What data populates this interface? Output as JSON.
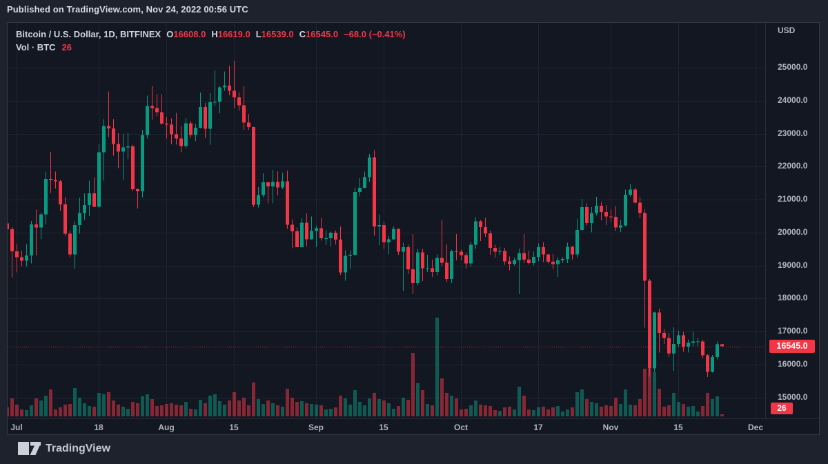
{
  "published_bar": {
    "text": "Published on TradingView.com, Nov 24, 2022 00:56 UTC"
  },
  "header": {
    "symbol_title": "Bitcoin / U.S. Dollar, 1D, BITFINEX",
    "ohlc": {
      "o_label": "O",
      "o": "16608.0",
      "h_label": "H",
      "h": "16619.0",
      "l_label": "L",
      "l": "16539.0",
      "c_label": "C",
      "c": "16545.0",
      "change": "−68.0 (−0.41%)"
    },
    "volume_row": {
      "label": "Vol · BTC",
      "value": "26"
    }
  },
  "price_axis": {
    "title": "USD",
    "tick_labels": [
      "25000.0",
      "24000.0",
      "23000.0",
      "22000.0",
      "21000.0",
      "20000.0",
      "19000.0",
      "18000.0",
      "17000.0",
      "16000.0",
      "15000.0"
    ],
    "tick_prices": [
      25000,
      24000,
      23000,
      22000,
      21000,
      20000,
      19000,
      18000,
      17000,
      16000,
      15000
    ],
    "last_price": 16545.0,
    "last_price_label": "16545.0",
    "volume_value_label": "26"
  },
  "time_axis": {
    "ticks": [
      {
        "label": "Jul",
        "day_index": 2
      },
      {
        "label": "18",
        "day_index": 19
      },
      {
        "label": "Aug",
        "day_index": 33
      },
      {
        "label": "15",
        "day_index": 47
      },
      {
        "label": "Sep",
        "day_index": 64
      },
      {
        "label": "15",
        "day_index": 78
      },
      {
        "label": "Oct",
        "day_index": 94
      },
      {
        "label": "17",
        "day_index": 110
      },
      {
        "label": "Nov",
        "day_index": 125
      },
      {
        "label": "15",
        "day_index": 139
      },
      {
        "label": "Dec",
        "day_index": 155
      }
    ]
  },
  "logo": {
    "text": "TradingView"
  },
  "colors": {
    "background": "#1e222d",
    "chart_background": "#131722",
    "border": "#363a45",
    "grid": "#1e2433",
    "axis_line": "#2a2e39",
    "up": "#089981",
    "down": "#f23645",
    "volume_up": "rgba(8,153,129,0.52)",
    "volume_down": "rgba(242,54,69,0.52)",
    "text_primary": "#d1d4dc",
    "text_secondary": "#b2b5be",
    "badge_bg": "#f23645",
    "last_price_line": "#f23645"
  },
  "chart_data": {
    "type": "candlestick",
    "title": "Bitcoin / U.S. Dollar",
    "exchange": "BITFINEX",
    "interval": "1D",
    "quote_currency": "USD",
    "first_candle_date": "2022-06-29",
    "last_candle_date": "2022-11-24",
    "price_ylim": [
      14400,
      26350
    ],
    "grid": true,
    "legend_position": "top-left",
    "last_close": 16545.0,
    "last_volume": 26,
    "volume_max_scale": 1250,
    "candles_format": [
      "open",
      "high",
      "low",
      "close",
      "volume"
    ],
    "candles": [
      [
        20280,
        20420,
        19980,
        20100,
        110
      ],
      [
        20100,
        20160,
        18630,
        19430,
        230
      ],
      [
        19430,
        19650,
        18790,
        19250,
        150
      ],
      [
        19250,
        19450,
        18980,
        19150,
        90
      ],
      [
        19150,
        19650,
        18970,
        19300,
        80
      ],
      [
        19300,
        20350,
        19060,
        20250,
        140
      ],
      [
        20250,
        20700,
        19300,
        20150,
        230
      ],
      [
        20150,
        20600,
        19800,
        20550,
        200
      ],
      [
        20550,
        21850,
        20250,
        21630,
        260
      ],
      [
        21630,
        22450,
        21200,
        21590,
        340
      ],
      [
        21590,
        21850,
        21330,
        21560,
        90
      ],
      [
        21560,
        21600,
        20650,
        20850,
        110
      ],
      [
        20850,
        21070,
        19900,
        19960,
        150
      ],
      [
        19960,
        20050,
        19250,
        19330,
        160
      ],
      [
        19330,
        20340,
        18910,
        20230,
        360
      ],
      [
        20230,
        21050,
        19960,
        20590,
        240
      ],
      [
        20590,
        21190,
        20380,
        20830,
        170
      ],
      [
        20830,
        21580,
        20500,
        21190,
        130
      ],
      [
        21190,
        21670,
        20770,
        20780,
        120
      ],
      [
        20780,
        22680,
        20760,
        22430,
        300
      ],
      [
        22430,
        23440,
        21580,
        23230,
        280
      ],
      [
        23230,
        24280,
        22900,
        23160,
        310
      ],
      [
        23160,
        23440,
        22330,
        22690,
        200
      ],
      [
        22690,
        23010,
        21950,
        22460,
        150
      ],
      [
        22460,
        22990,
        21600,
        22580,
        120
      ],
      [
        22580,
        23020,
        22230,
        22610,
        100
      ],
      [
        22610,
        22660,
        21250,
        21310,
        180
      ],
      [
        21310,
        21340,
        20730,
        21250,
        170
      ],
      [
        21250,
        23110,
        21060,
        22960,
        250
      ],
      [
        22960,
        24150,
        22850,
        23840,
        280
      ],
      [
        23840,
        24440,
        23420,
        23770,
        220
      ],
      [
        23770,
        24190,
        23520,
        23650,
        130
      ],
      [
        23650,
        24180,
        23270,
        23300,
        140
      ],
      [
        23300,
        23500,
        22850,
        23270,
        160
      ],
      [
        23270,
        23460,
        22680,
        22980,
        170
      ],
      [
        22980,
        23630,
        22660,
        22850,
        150
      ],
      [
        22850,
        23220,
        22430,
        22620,
        140
      ],
      [
        22620,
        23470,
        22570,
        23310,
        180
      ],
      [
        23310,
        23390,
        22870,
        22960,
        100
      ],
      [
        22960,
        23290,
        22770,
        23180,
        90
      ],
      [
        23180,
        24250,
        23160,
        23810,
        210
      ],
      [
        23810,
        23930,
        22860,
        23150,
        170
      ],
      [
        23150,
        24220,
        22670,
        23950,
        260
      ],
      [
        23950,
        24920,
        23850,
        23960,
        280
      ],
      [
        23960,
        24450,
        23620,
        24400,
        190
      ],
      [
        24400,
        24890,
        24300,
        24460,
        150
      ],
      [
        24460,
        25050,
        24160,
        24300,
        200
      ],
      [
        24300,
        25210,
        23780,
        24100,
        310
      ],
      [
        24100,
        24250,
        23690,
        23860,
        200
      ],
      [
        23860,
        24430,
        23120,
        23340,
        240
      ],
      [
        23340,
        23600,
        23110,
        23200,
        140
      ],
      [
        23200,
        23210,
        20770,
        20840,
        430
      ],
      [
        20840,
        21380,
        20760,
        21140,
        220
      ],
      [
        21140,
        21800,
        21070,
        21520,
        160
      ],
      [
        21520,
        21530,
        20890,
        21400,
        200
      ],
      [
        21400,
        21900,
        20890,
        21530,
        170
      ],
      [
        21530,
        21860,
        21130,
        21370,
        140
      ],
      [
        21370,
        21820,
        21310,
        21560,
        120
      ],
      [
        21560,
        21880,
        20110,
        20240,
        350
      ],
      [
        20240,
        20390,
        19520,
        20040,
        240
      ],
      [
        20040,
        20150,
        19550,
        19560,
        180
      ],
      [
        19560,
        20430,
        19540,
        20300,
        190
      ],
      [
        20300,
        20580,
        19580,
        19800,
        170
      ],
      [
        19800,
        20490,
        19790,
        20050,
        160
      ],
      [
        20050,
        20200,
        19560,
        20130,
        150
      ],
      [
        20130,
        20440,
        19750,
        19830,
        140
      ],
      [
        19830,
        20060,
        19630,
        19830,
        90
      ],
      [
        19830,
        20030,
        19590,
        19990,
        100
      ],
      [
        19990,
        20060,
        19640,
        19790,
        110
      ],
      [
        19790,
        20180,
        18720,
        18790,
        260
      ],
      [
        18790,
        19460,
        18540,
        19290,
        230
      ],
      [
        19290,
        19450,
        18900,
        19320,
        150
      ],
      [
        19320,
        21370,
        19290,
        21230,
        330
      ],
      [
        21230,
        21650,
        21090,
        21360,
        180
      ],
      [
        21360,
        21850,
        21330,
        21680,
        140
      ],
      [
        21680,
        22380,
        21530,
        22280,
        230
      ],
      [
        22280,
        22500,
        19900,
        20180,
        300
      ],
      [
        20180,
        20550,
        19620,
        20230,
        220
      ],
      [
        20230,
        20330,
        19500,
        19700,
        200
      ],
      [
        19700,
        19890,
        19330,
        19800,
        170
      ],
      [
        19800,
        20180,
        19760,
        20110,
        100
      ],
      [
        20110,
        20120,
        19320,
        19420,
        130
      ],
      [
        19420,
        19690,
        18230,
        19560,
        240
      ],
      [
        19560,
        19630,
        18750,
        18880,
        210
      ],
      [
        18880,
        19950,
        18130,
        18470,
        800
      ],
      [
        18470,
        19500,
        18390,
        19400,
        420
      ],
      [
        19400,
        19500,
        18530,
        18920,
        330
      ],
      [
        18920,
        19320,
        18800,
        18920,
        160
      ],
      [
        18920,
        19180,
        18650,
        18800,
        140
      ],
      [
        18800,
        19330,
        18710,
        19230,
        1250
      ],
      [
        19230,
        20380,
        18980,
        19080,
        480
      ],
      [
        19080,
        19640,
        18510,
        18590,
        300
      ],
      [
        18590,
        19480,
        18470,
        19430,
        260
      ],
      [
        19430,
        19950,
        19160,
        19420,
        230
      ],
      [
        19420,
        19480,
        19160,
        19310,
        90
      ],
      [
        19310,
        19390,
        18920,
        19060,
        100
      ],
      [
        19060,
        19720,
        18960,
        19630,
        140
      ],
      [
        19630,
        20470,
        19500,
        20340,
        200
      ],
      [
        20340,
        20370,
        19740,
        20160,
        150
      ],
      [
        20160,
        20450,
        19870,
        19970,
        140
      ],
      [
        19970,
        20060,
        19320,
        19530,
        130
      ],
      [
        19530,
        19630,
        19240,
        19420,
        80
      ],
      [
        19420,
        19560,
        19310,
        19440,
        70
      ],
      [
        19440,
        19530,
        19020,
        19130,
        110
      ],
      [
        19130,
        19270,
        18850,
        19050,
        120
      ],
      [
        19050,
        19240,
        19000,
        19160,
        90
      ],
      [
        19160,
        19510,
        18130,
        19380,
        380
      ],
      [
        19380,
        19950,
        19070,
        19180,
        260
      ],
      [
        19180,
        19450,
        19030,
        19070,
        90
      ],
      [
        19070,
        19420,
        19000,
        19260,
        80
      ],
      [
        19260,
        19670,
        19130,
        19550,
        110
      ],
      [
        19550,
        19700,
        19100,
        19330,
        120
      ],
      [
        19330,
        19350,
        19060,
        19120,
        90
      ],
      [
        19120,
        19350,
        18900,
        19040,
        110
      ],
      [
        19040,
        19250,
        18650,
        19160,
        130
      ],
      [
        19160,
        19250,
        19070,
        19200,
        60
      ],
      [
        19200,
        19690,
        19070,
        19570,
        90
      ],
      [
        19570,
        19600,
        19180,
        19330,
        110
      ],
      [
        19330,
        20420,
        19240,
        20080,
        310
      ],
      [
        20080,
        21020,
        20050,
        20770,
        340
      ],
      [
        20770,
        20880,
        20210,
        20290,
        220
      ],
      [
        20290,
        20770,
        20010,
        20590,
        180
      ],
      [
        20590,
        21080,
        20520,
        20810,
        170
      ],
      [
        20810,
        20930,
        20370,
        20620,
        120
      ],
      [
        20620,
        20830,
        20230,
        20490,
        140
      ],
      [
        20490,
        20700,
        20330,
        20480,
        130
      ],
      [
        20480,
        20800,
        20050,
        20150,
        240
      ],
      [
        20150,
        20380,
        20020,
        20210,
        160
      ],
      [
        20210,
        21300,
        20180,
        21150,
        340
      ],
      [
        21150,
        21470,
        21090,
        21300,
        150
      ],
      [
        21300,
        21360,
        20890,
        20910,
        140
      ],
      [
        20910,
        21070,
        20430,
        20590,
        220
      ],
      [
        20590,
        20700,
        17120,
        18540,
        600
      ],
      [
        18540,
        18590,
        15630,
        15880,
        600
      ],
      [
        15880,
        17600,
        15780,
        17580,
        560
      ],
      [
        17580,
        17690,
        16360,
        16960,
        350
      ],
      [
        16960,
        17070,
        16620,
        16800,
        120
      ],
      [
        16800,
        16950,
        16230,
        16330,
        140
      ],
      [
        16330,
        17130,
        15810,
        16620,
        300
      ],
      [
        16620,
        17020,
        16530,
        16880,
        180
      ],
      [
        16880,
        16990,
        16380,
        16540,
        160
      ],
      [
        16540,
        16750,
        16360,
        16650,
        120
      ],
      [
        16650,
        17000,
        16540,
        16700,
        130
      ],
      [
        16700,
        16810,
        16550,
        16700,
        60
      ],
      [
        16700,
        16750,
        16180,
        16280,
        130
      ],
      [
        16280,
        16310,
        15620,
        15780,
        300
      ],
      [
        15780,
        16290,
        15750,
        16220,
        220
      ],
      [
        16220,
        16700,
        16150,
        16613,
        250
      ],
      [
        16608,
        16619,
        16539,
        16545,
        26
      ]
    ]
  }
}
